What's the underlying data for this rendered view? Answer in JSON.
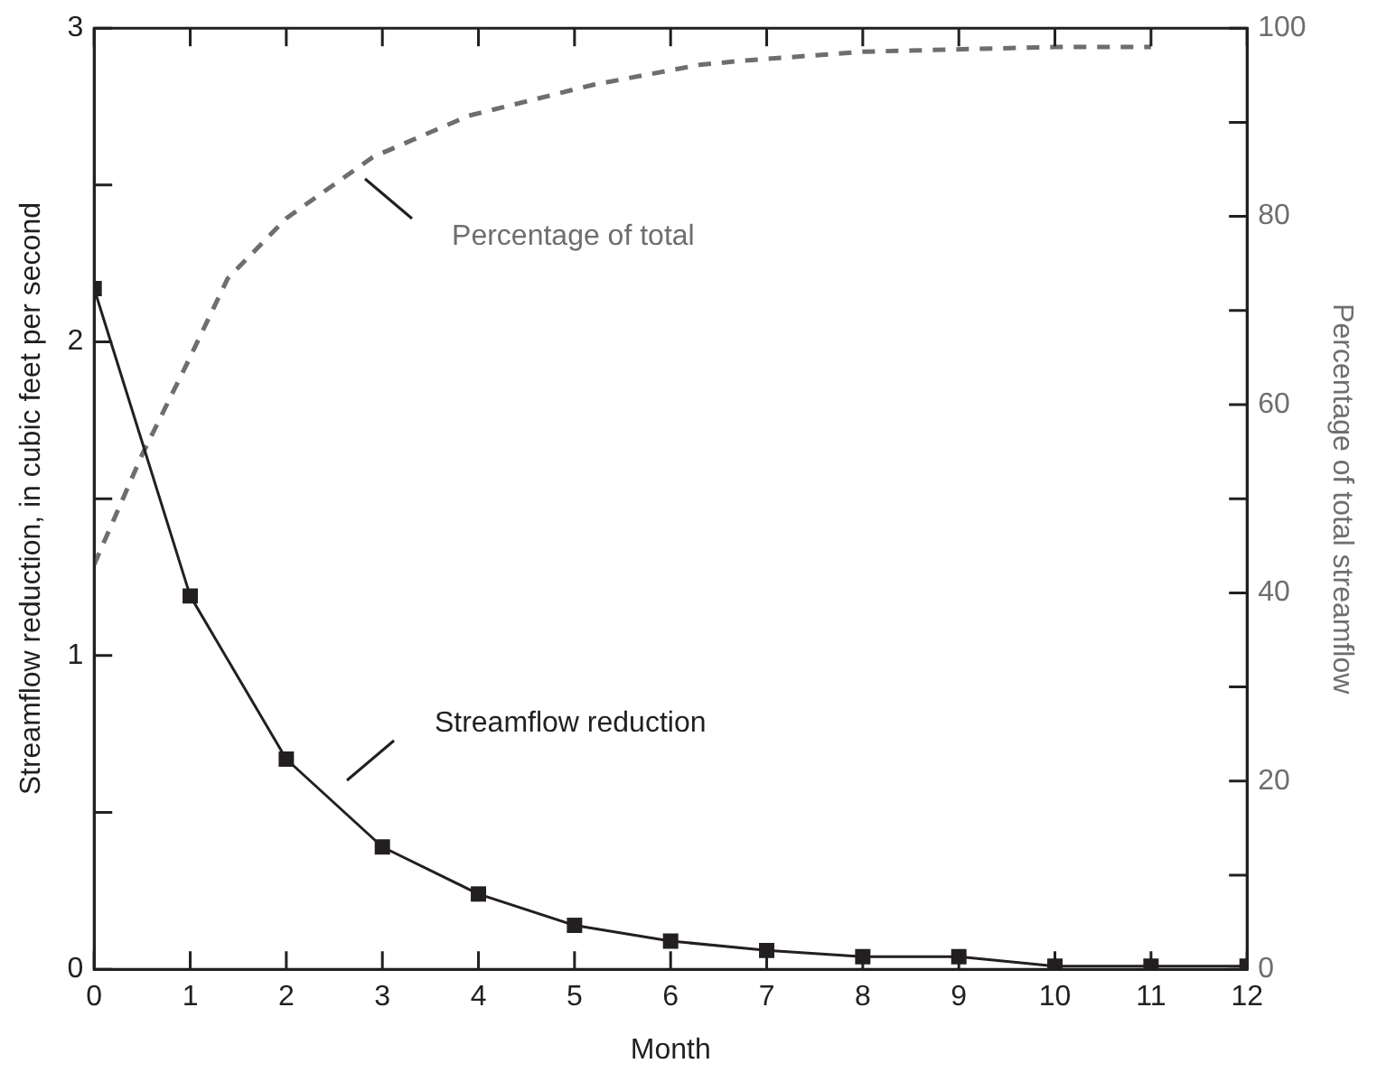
{
  "chart_data": {
    "type": "line",
    "xlabel": "Month",
    "ylabel": "Streamflow reduction, in cubic feet per second",
    "y2label": "Percentage of total streamflow",
    "xlim": [
      0,
      12
    ],
    "xticks": [
      0,
      1,
      2,
      3,
      4,
      5,
      6,
      7,
      8,
      9,
      10,
      11,
      12
    ],
    "ylim": [
      0,
      3
    ],
    "yticks": [
      0,
      {
        "value": 0.5,
        "label": null
      },
      1,
      {
        "value": 1.5,
        "label": null
      },
      2,
      {
        "value": 2.5,
        "label": null
      },
      3
    ],
    "y2lim": [
      0,
      100
    ],
    "y2ticks": [
      0,
      {
        "value": 10,
        "label": null
      },
      20,
      {
        "value": 30,
        "label": null
      },
      40,
      {
        "value": 50,
        "label": null
      },
      60,
      {
        "value": 70,
        "label": null
      },
      80,
      {
        "value": 90,
        "label": null
      },
      100
    ],
    "grid": false,
    "legend": false,
    "series": [
      {
        "color": "#231f20",
        "marker": "square",
        "line_style": "solid",
        "x": [
          0,
          1,
          2,
          3,
          4,
          5,
          6,
          7,
          8,
          9,
          10,
          11,
          12
        ],
        "values": [
          2.17,
          1.19,
          0.67,
          0.39,
          0.24,
          0.14,
          0.09,
          0.06,
          0.04,
          0.04,
          0.01,
          0.01,
          0.01
        ]
      },
      {
        "color": "#6d6e71",
        "marker": "none",
        "line_style": "dashed",
        "axis": "y2",
        "x": [
          0,
          0.5,
          0.94,
          1.39,
          2.0,
          2.9,
          3.9,
          5.2,
          6.3,
          6.7,
          8.0,
          10.0,
          11.0
        ],
        "values": [
          43,
          54.7,
          63.8,
          73.4,
          79.8,
          86.3,
          90.7,
          94,
          96.1,
          96.5,
          97.5,
          98,
          98
        ]
      }
    ],
    "annotations": [
      "Percentage of total",
      "Streamflow reduction"
    ]
  }
}
